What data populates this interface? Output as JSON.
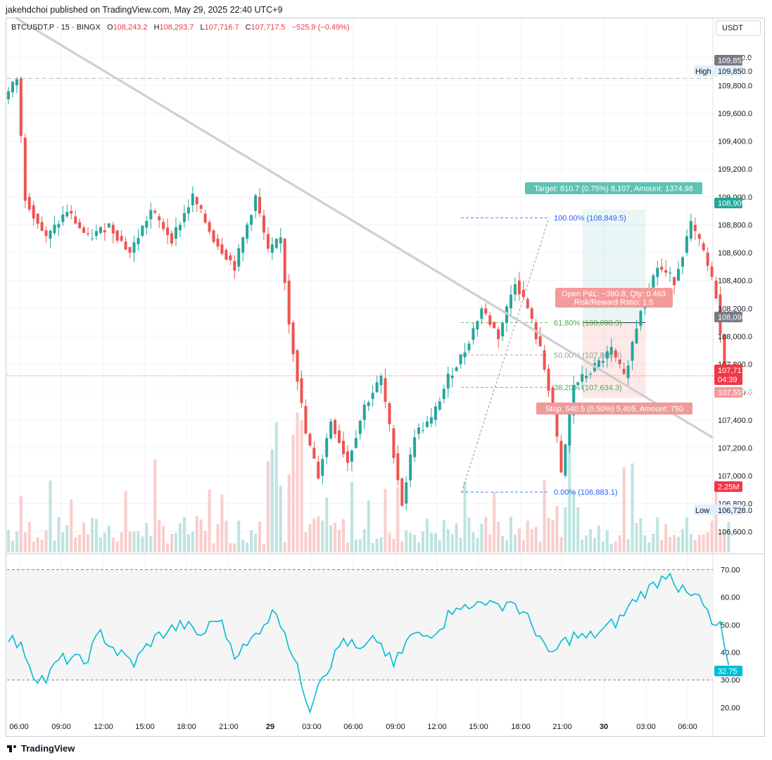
{
  "publisher_line": "jakehdchoi published on TradingView.com, May 29, 2025 22:40 UTC+9",
  "legend": {
    "symbol": "BTCUSDT.P · 15 · BINGX",
    "open_label": "O",
    "open": "108,243.2",
    "high_label": "H",
    "high": "108,293.7",
    "low_label": "L",
    "low": "107,716.7",
    "close_label": "C",
    "close": "107,717.5",
    "change": "−525.9 (−0.49%)"
  },
  "currency": "USDT",
  "footer_brand": "TradingView",
  "colors": {
    "up": "#26a69a",
    "down": "#ef5350",
    "rsi": "#00bcd4",
    "fib_blue": "#2962ff",
    "fib_green": "#4caf50",
    "fib_gray": "#9e9e9e",
    "target_bg": "#5ec2b4",
    "stop_bg": "#f09a9a",
    "last_price_bg": "#f23645",
    "trendline": "#cfcfcf"
  },
  "chart_data": [
    {
      "type": "candlestick",
      "ylim": [
        106450,
        110150
      ],
      "x_tick_labels": [
        "06:00",
        "09:00",
        "12:00",
        "15:00",
        "18:00",
        "21:00",
        "29",
        "03:00",
        "06:00",
        "09:00",
        "12:00",
        "15:00",
        "18:00",
        "21:00",
        "30",
        "03:00",
        "06:00"
      ],
      "y_tick_labels": [
        "110,000.0",
        "109,800.0",
        "109,600.0",
        "109,400.0",
        "109,200.0",
        "109,000.0",
        "108,800.0",
        "108,600.0",
        "108,400.0",
        "108,200.0",
        "108,000.0",
        "107,800.0",
        "107,600.0",
        "107,400.0",
        "107,200.0",
        "107,000.0",
        "106,800.0",
        "106,600.0"
      ],
      "y_ticks": [
        110000,
        109800,
        109600,
        109400,
        109200,
        109000,
        108800,
        108600,
        108400,
        108200,
        108000,
        107800,
        107600,
        107400,
        107200,
        107000,
        106800,
        106600
      ],
      "price_path": [
        [
          0,
          109700
        ],
        [
          3,
          109850
        ],
        [
          5,
          109000
        ],
        [
          10,
          108700
        ],
        [
          15,
          108900
        ],
        [
          20,
          108700
        ],
        [
          25,
          108800
        ],
        [
          30,
          108600
        ],
        [
          35,
          108900
        ],
        [
          40,
          108700
        ],
        [
          45,
          109000
        ],
        [
          50,
          108700
        ],
        [
          55,
          108500
        ],
        [
          60,
          109000
        ],
        [
          63,
          108600
        ],
        [
          66,
          108700
        ],
        [
          68,
          108100
        ],
        [
          70,
          107700
        ],
        [
          72,
          107300
        ],
        [
          75,
          107000
        ],
        [
          78,
          107400
        ],
        [
          82,
          107100
        ],
        [
          86,
          107500
        ],
        [
          90,
          107700
        ],
        [
          95,
          106800
        ],
        [
          98,
          107300
        ],
        [
          102,
          107400
        ],
        [
          106,
          107700
        ],
        [
          110,
          107900
        ],
        [
          114,
          108200
        ],
        [
          118,
          108000
        ],
        [
          122,
          108400
        ],
        [
          125,
          108200
        ],
        [
          128,
          107900
        ],
        [
          131,
          107500
        ],
        [
          133,
          107000
        ],
        [
          136,
          107650
        ],
        [
          140,
          107750
        ],
        [
          145,
          107900
        ],
        [
          148,
          107700
        ],
        [
          152,
          108200
        ],
        [
          156,
          108500
        ],
        [
          160,
          108400
        ],
        [
          164,
          108800
        ],
        [
          167,
          108600
        ],
        [
          170,
          108300
        ],
        [
          172,
          107720
        ]
      ],
      "high_marker": {
        "label": "High",
        "value": "109,850.0"
      },
      "low_marker": {
        "label": "Low",
        "value": "106,728.0"
      },
      "price_badges": {
        "high_price": "109,852.2",
        "target_price": "108,909.0",
        "entry_price": "108,098.3",
        "last_price": "107,717.5",
        "countdown": "04:39",
        "stop_price": "107,557.8",
        "volume_badge": "2.25M"
      },
      "fibonacci": [
        {
          "label": "100.00% (108,849.5)",
          "value": 108849.5,
          "color": "#2962ff"
        },
        {
          "label": "61.80% (108,098.3)",
          "value": 108098.3,
          "color": "#4caf50"
        },
        {
          "label": "50.00% (107,866.3)",
          "value": 107866.3,
          "color": "#9e9e9e"
        },
        {
          "label": "38.20% (107,634.3)",
          "value": 107634.3,
          "color": "#4caf50"
        },
        {
          "label": "0.00% (106,883.1)",
          "value": 106883.1,
          "color": "#2962ff"
        }
      ],
      "position_tool": {
        "target_label": "Target: 810.7 (0.75%) 8,107, Amount: 1374.98",
        "pnl_label": "Open P&L: −380.8, Qty: 0.463",
        "rr_label": "Risk/Reward Ratio: 1.5",
        "stop_label": "Stop: 540.5 (0.50%) 5,405, Amount: 750",
        "target": 108909.0,
        "entry": 108098.3,
        "stop": 107557.8
      },
      "trendline": {
        "from": [
          0,
          110220
        ],
        "to": [
          2.1,
          0
        ],
        "note": ""
      }
    },
    {
      "type": "line",
      "series": [
        {
          "name": "",
          "values": []
        }
      ],
      "ylim": [
        16,
        75
      ],
      "y_tick_labels": [
        "70.00",
        "60.00",
        "50.00",
        "40.00",
        "30.00",
        "20.00"
      ],
      "y_ticks": [
        70,
        60,
        50,
        40,
        30,
        20
      ],
      "band": [
        30,
        70
      ],
      "rsi_path": [
        [
          0,
          46
        ],
        [
          4,
          40
        ],
        [
          6,
          32
        ],
        [
          9,
          30
        ],
        [
          12,
          37
        ],
        [
          15,
          38
        ],
        [
          18,
          36
        ],
        [
          22,
          47
        ],
        [
          26,
          40
        ],
        [
          30,
          36
        ],
        [
          34,
          44
        ],
        [
          38,
          48
        ],
        [
          42,
          50
        ],
        [
          46,
          46
        ],
        [
          50,
          53
        ],
        [
          54,
          40
        ],
        [
          57,
          42
        ],
        [
          61,
          51
        ],
        [
          64,
          55
        ],
        [
          66,
          48
        ],
        [
          68,
          38
        ],
        [
          70,
          29
        ],
        [
          72,
          20
        ],
        [
          74,
          30
        ],
        [
          77,
          36
        ],
        [
          80,
          45
        ],
        [
          84,
          40
        ],
        [
          88,
          45
        ],
        [
          92,
          35
        ],
        [
          96,
          46
        ],
        [
          100,
          46
        ],
        [
          104,
          51
        ],
        [
          107,
          58
        ],
        [
          110,
          55
        ],
        [
          113,
          60
        ],
        [
          116,
          56
        ],
        [
          120,
          59
        ],
        [
          124,
          52
        ],
        [
          127,
          46
        ],
        [
          129,
          38
        ],
        [
          132,
          43
        ],
        [
          135,
          46
        ],
        [
          138,
          45
        ],
        [
          142,
          48
        ],
        [
          146,
          52
        ],
        [
          150,
          60
        ],
        [
          153,
          63
        ],
        [
          156,
          67
        ],
        [
          158,
          70
        ],
        [
          160,
          63
        ],
        [
          163,
          60
        ],
        [
          165,
          60
        ],
        [
          168,
          50
        ],
        [
          170,
          49
        ],
        [
          172,
          33
        ]
      ],
      "last_value": "32.75"
    }
  ]
}
